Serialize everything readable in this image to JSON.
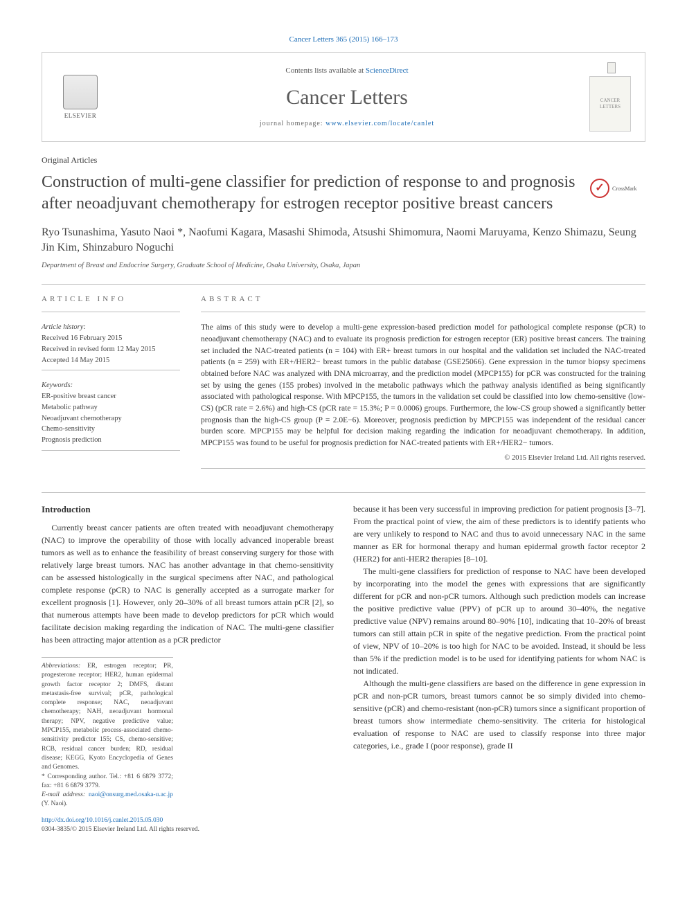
{
  "citation": "Cancer Letters 365 (2015) 166–173",
  "header": {
    "contents_prefix": "Contents lists available at ",
    "contents_link": "ScienceDirect",
    "journal_name": "Cancer Letters",
    "homepage_prefix": "journal homepage: ",
    "homepage_url": "www.elsevier.com/locate/canlet",
    "publisher": "ELSEVIER",
    "cover_label": "CANCER LETTERS"
  },
  "crossmark": "CrossMark",
  "article_type": "Original Articles",
  "title": "Construction of multi-gene classifier for prediction of response to and prognosis after neoadjuvant chemotherapy for estrogen receptor positive breast cancers",
  "authors": "Ryo Tsunashima, Yasuto Naoi *, Naofumi Kagara, Masashi Shimoda, Atsushi Shimomura, Naomi Maruyama, Kenzo Shimazu, Seung Jin Kim, Shinzaburo Noguchi",
  "affiliation": "Department of Breast and Endocrine Surgery, Graduate School of Medicine, Osaka University, Osaka, Japan",
  "article_info": {
    "label": "ARTICLE INFO",
    "history_label": "Article history:",
    "received": "Received 16 February 2015",
    "revised": "Received in revised form 12 May 2015",
    "accepted": "Accepted 14 May 2015",
    "keywords_label": "Keywords:",
    "keywords": [
      "ER-positive breast cancer",
      "Metabolic pathway",
      "Neoadjuvant chemotherapy",
      "Chemo-sensitivity",
      "Prognosis prediction"
    ]
  },
  "abstract": {
    "label": "ABSTRACT",
    "text": "The aims of this study were to develop a multi-gene expression-based prediction model for pathological complete response (pCR) to neoadjuvant chemotherapy (NAC) and to evaluate its prognosis prediction for estrogen receptor (ER) positive breast cancers. The training set included the NAC-treated patients (n = 104) with ER+ breast tumors in our hospital and the validation set included the NAC-treated patients (n = 259) with ER+/HER2− breast tumors in the public database (GSE25066). Gene expression in the tumor biopsy specimens obtained before NAC was analyzed with DNA microarray, and the prediction model (MPCP155) for pCR was constructed for the training set by using the genes (155 probes) involved in the metabolic pathways which the pathway analysis identified as being significantly associated with pathological response. With MPCP155, the tumors in the validation set could be classified into low chemo-sensitive (low-CS) (pCR rate = 2.6%) and high-CS (pCR rate = 15.3%; P = 0.0006) groups. Furthermore, the low-CS group showed a significantly better prognosis than the high-CS group (P = 2.0E−6). Moreover, prognosis prediction by MPCP155 was independent of the residual cancer burden score. MPCP155 may be helpful for decision making regarding the indication for neoadjuvant chemotherapy. In addition, MPCP155 was found to be useful for prognosis prediction for NAC-treated patients with ER+/HER2− tumors.",
    "copyright": "© 2015 Elsevier Ireland Ltd. All rights reserved."
  },
  "body": {
    "heading": "Introduction",
    "p1": "Currently breast cancer patients are often treated with neoadjuvant chemotherapy (NAC) to improve the operability of those with locally advanced inoperable breast tumors as well as to enhance the feasibility of breast conserving surgery for those with relatively large breast tumors. NAC has another advantage in that chemo-sensitivity can be assessed histologically in the surgical specimens after NAC, and pathological complete response (pCR) to NAC is generally accepted as a surrogate marker for excellent prognosis [1]. However, only 20–30% of all breast tumors attain pCR [2], so that numerous attempts have been made to develop predictors for pCR which would facilitate decision making regarding the indication of NAC. The multi-gene classifier has been attracting major attention as a pCR predictor",
    "p2": "because it has been very successful in improving prediction for patient prognosis [3–7]. From the practical point of view, the aim of these predictors is to identify patients who are very unlikely to respond to NAC and thus to avoid unnecessary NAC in the same manner as ER for hormonal therapy and human epidermal growth factor receptor 2 (HER2) for anti-HER2 therapies [8–10].",
    "p3": "The multi-gene classifiers for prediction of response to NAC have been developed by incorporating into the model the genes with expressions that are significantly different for pCR and non-pCR tumors. Although such prediction models can increase the positive predictive value (PPV) of pCR up to around 30–40%, the negative predictive value (NPV) remains around 80–90% [10], indicating that 10–20% of breast tumors can still attain pCR in spite of the negative prediction. From the practical point of view, NPV of 10–20% is too high for NAC to be avoided. Instead, it should be less than 5% if the prediction model is to be used for identifying patients for whom NAC is not indicated.",
    "p4": "Although the multi-gene classifiers are based on the difference in gene expression in pCR and non-pCR tumors, breast tumors cannot be so simply divided into chemo-sensitive (pCR) and chemo-resistant (non-pCR) tumors since a significant proportion of breast tumors show intermediate chemo-sensitivity. The criteria for histological evaluation of response to NAC are used to classify response into three major categories, i.e., grade I (poor response), grade II"
  },
  "footnotes": {
    "abbrev_label": "Abbreviations:",
    "abbrev_text": " ER, estrogen receptor; PR, progesterone receptor; HER2, human epidermal growth factor receptor 2; DMFS, distant metastasis-free survival; pCR, pathological complete response; NAC, neoadjuvant chemotherapy; NAH, neoadjuvant hormonal therapy; NPV, negative predictive value; MPCP155, metabolic process-associated chemo-sensitivity predictor 155; CS, chemo-sensitive; RCB, residual cancer burden; RD, residual disease; KEGG, Kyoto Encyclopedia of Genes and Genomes.",
    "corr_label": "* Corresponding author. Tel.: +81 6 6879 3772; fax: +81 6 6879 3779.",
    "email_label": "E-mail address: ",
    "email": "naoi@onsurg.med.osaka-u.ac.jp",
    "email_suffix": " (Y. Naoi)."
  },
  "footer": {
    "doi": "http://dx.doi.org/10.1016/j.canlet.2015.05.030",
    "issn_copyright": "0304-3835/© 2015 Elsevier Ireland Ltd. All rights reserved."
  },
  "refs": {
    "r1": "[1]",
    "r2": "[2]",
    "r37": "[3–7]",
    "r810": "[8–10]",
    "r10": "[10]"
  }
}
